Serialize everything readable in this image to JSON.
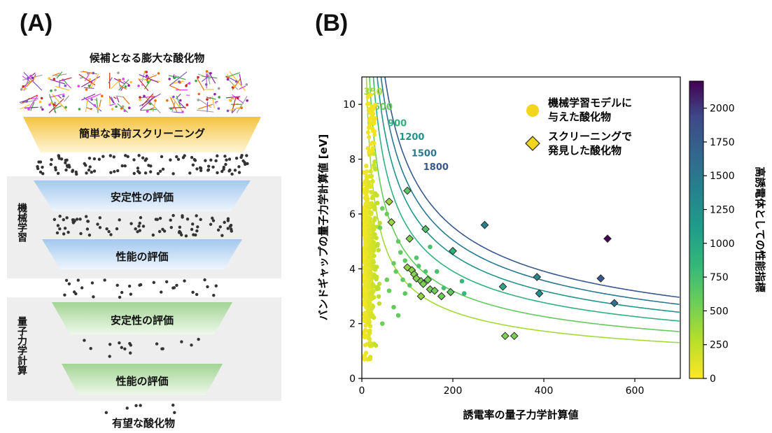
{
  "panels": {
    "a_label": "(A)",
    "b_label": "(B)"
  },
  "funnel": {
    "top_label": "候補となる膨大な酸化物",
    "stage_screening": "簡単な事前スクリーニング",
    "ml_group_label": "機械学習",
    "ml_stage1": "安定性の評価",
    "ml_stage2": "性能の評価",
    "qc_group_label": "量子力学計算",
    "qc_stage1": "安定性の評価",
    "qc_stage2": "性能の評価",
    "bottom_label": "有望な酸化物",
    "colors": {
      "screening": "#f6c646",
      "ml": "#a9cdef",
      "qc": "#a9d79a",
      "band": "#eeeeee",
      "dots": "#333333"
    }
  },
  "chart_data": {
    "type": "scatter",
    "xlabel": "誘電率の量子力学計算値",
    "ylabel": "バンドギャップの量子力学計算値 [eV]",
    "xlim": [
      0,
      700
    ],
    "ylim": [
      0,
      11
    ],
    "xticks": [
      0,
      200,
      400,
      600
    ],
    "yticks": [
      0,
      2,
      4,
      6,
      8,
      10
    ],
    "grid": false,
    "legend_position": "top-right",
    "legend": [
      {
        "label_line1": "機械学習モデルに",
        "label_line2": "与えた酸化物",
        "marker": "circle",
        "color": "#f2d61e"
      },
      {
        "label_line1": "スクリーニングで",
        "label_line2": "発見した酸化物",
        "marker": "diamond",
        "color": "#f2d61e"
      }
    ],
    "contours": {
      "levels": [
        350,
        600,
        900,
        1200,
        1500,
        1800
      ],
      "label_text": [
        "350",
        "600",
        "900",
        "1200",
        "1500",
        "1800"
      ]
    },
    "colorbar": {
      "label": "高誘電体としての性能指標",
      "min": 0,
      "max": 2200,
      "ticks": [
        0,
        250,
        500,
        750,
        1000,
        1250,
        1500,
        1750,
        2000
      ]
    },
    "discovered": [
      {
        "x": 60,
        "y": 6.45,
        "v": 380
      },
      {
        "x": 100,
        "y": 6.85,
        "v": 650
      },
      {
        "x": 65,
        "y": 5.7,
        "v": 380
      },
      {
        "x": 140,
        "y": 5.45,
        "v": 700
      },
      {
        "x": 105,
        "y": 5.1,
        "v": 500
      },
      {
        "x": 100,
        "y": 4.05,
        "v": 420
      },
      {
        "x": 110,
        "y": 3.95,
        "v": 460
      },
      {
        "x": 115,
        "y": 3.8,
        "v": 470
      },
      {
        "x": 120,
        "y": 3.65,
        "v": 480
      },
      {
        "x": 130,
        "y": 3.55,
        "v": 500
      },
      {
        "x": 135,
        "y": 3.45,
        "v": 500
      },
      {
        "x": 145,
        "y": 3.6,
        "v": 540
      },
      {
        "x": 150,
        "y": 3.25,
        "v": 520
      },
      {
        "x": 160,
        "y": 3.2,
        "v": 540
      },
      {
        "x": 175,
        "y": 3.0,
        "v": 560
      },
      {
        "x": 130,
        "y": 3.0,
        "v": 430
      },
      {
        "x": 195,
        "y": 3.15,
        "v": 610
      },
      {
        "x": 200,
        "y": 4.65,
        "v": 900
      },
      {
        "x": 270,
        "y": 5.6,
        "v": 1400
      },
      {
        "x": 310,
        "y": 3.35,
        "v": 1000
      },
      {
        "x": 385,
        "y": 3.7,
        "v": 1350
      },
      {
        "x": 390,
        "y": 3.1,
        "v": 1250
      },
      {
        "x": 315,
        "y": 1.55,
        "v": 500
      },
      {
        "x": 335,
        "y": 1.55,
        "v": 520
      },
      {
        "x": 525,
        "y": 3.65,
        "v": 1800
      },
      {
        "x": 540,
        "y": 5.1,
        "v": 2200
      },
      {
        "x": 555,
        "y": 2.75,
        "v": 1550
      }
    ],
    "greens": [
      {
        "x": 45,
        "y": 6.2
      },
      {
        "x": 55,
        "y": 6.0
      },
      {
        "x": 40,
        "y": 5.5
      },
      {
        "x": 80,
        "y": 5.0
      },
      {
        "x": 85,
        "y": 4.6
      },
      {
        "x": 95,
        "y": 4.3
      },
      {
        "x": 70,
        "y": 4.2
      },
      {
        "x": 75,
        "y": 3.9
      },
      {
        "x": 90,
        "y": 3.6
      },
      {
        "x": 120,
        "y": 4.4
      },
      {
        "x": 125,
        "y": 4.1
      },
      {
        "x": 105,
        "y": 3.4
      },
      {
        "x": 150,
        "y": 4.8
      },
      {
        "x": 165,
        "y": 3.9
      },
      {
        "x": 140,
        "y": 3.9
      },
      {
        "x": 180,
        "y": 3.3
      },
      {
        "x": 220,
        "y": 3.55
      },
      {
        "x": 225,
        "y": 3.1
      },
      {
        "x": 60,
        "y": 3.2
      },
      {
        "x": 70,
        "y": 2.6
      },
      {
        "x": 80,
        "y": 2.3
      },
      {
        "x": 45,
        "y": 2.0
      },
      {
        "x": 55,
        "y": 3.6
      },
      {
        "x": 95,
        "y": 3.1
      }
    ]
  }
}
